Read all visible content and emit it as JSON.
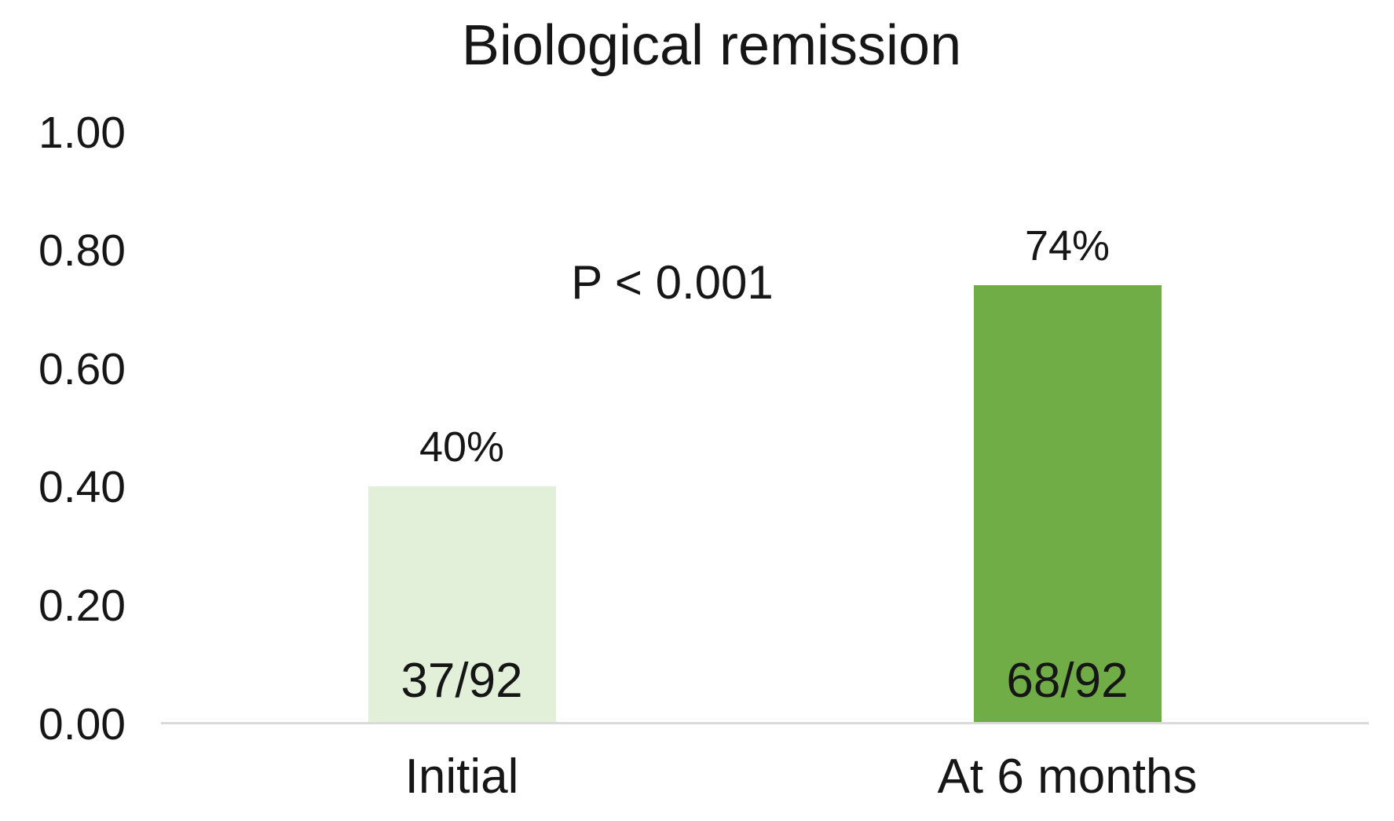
{
  "title": "Biological remission",
  "annotation": "P < 0.001",
  "colors": {
    "bar_initial": "#e2f0d9",
    "bar_6_months": "#70ad47",
    "axis_line": "#d9d9d9",
    "text": "#161616",
    "background": "#ffffff"
  },
  "chart_data": {
    "type": "bar",
    "title": "Biological remission",
    "categories": [
      "Initial",
      "At 6 months"
    ],
    "values": [
      0.4,
      0.74
    ],
    "bar_value_labels": [
      "40%",
      "74%"
    ],
    "bar_count_labels": [
      "37/92",
      "68/92"
    ],
    "bar_colors": [
      "#e2f0d9",
      "#70ad47"
    ],
    "annotation": "P < 0.001",
    "xlabel": "",
    "ylabel": "",
    "ylim": [
      0,
      1
    ],
    "yticks": [
      1.0,
      0.8,
      0.6,
      0.4,
      0.2,
      0.0
    ],
    "ytick_labels": [
      "1.00",
      "0.80",
      "0.60",
      "0.40",
      "0.20",
      "0.00"
    ],
    "grid": false,
    "legend": false
  }
}
